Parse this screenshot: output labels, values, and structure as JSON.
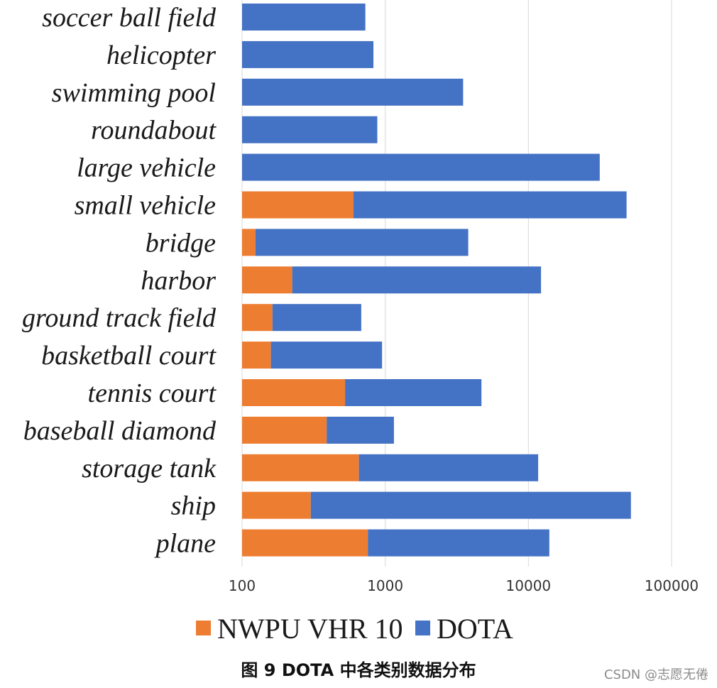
{
  "chart_data": {
    "type": "bar",
    "orientation": "horizontal",
    "stacked": true,
    "x_scale": "log",
    "xlim": [
      100,
      100000
    ],
    "x_ticks": [
      100,
      1000,
      10000,
      100000
    ],
    "x_tick_labels": [
      "100",
      "1000",
      "10000",
      "100000"
    ],
    "grid": true,
    "legend_position": "bottom",
    "categories": [
      "soccer ball field",
      "helicopter",
      "swimming pool",
      "roundabout",
      "large vehicle",
      "small vehicle",
      "bridge",
      "harbor",
      "ground track field",
      "basketball court",
      "tennis court",
      "baseball diamond",
      "storage tank",
      "ship",
      "plane"
    ],
    "series": [
      {
        "name": "NWPU VHR 10",
        "color": "#ED7D31",
        "values": [
          0,
          0,
          0,
          0,
          0,
          600,
          124,
          224,
          163,
          159,
          524,
          390,
          655,
          302,
          757
        ]
      },
      {
        "name": "DOTA",
        "color": "#4472C4",
        "values": [
          726,
          827,
          3500,
          880,
          31500,
          48500,
          3800,
          12250,
          680,
          950,
          4700,
          1150,
          11700,
          52000,
          14000
        ]
      }
    ]
  },
  "caption": "图 9 DOTA 中各类别数据分布",
  "watermark": "CSDN @志愿无倦"
}
